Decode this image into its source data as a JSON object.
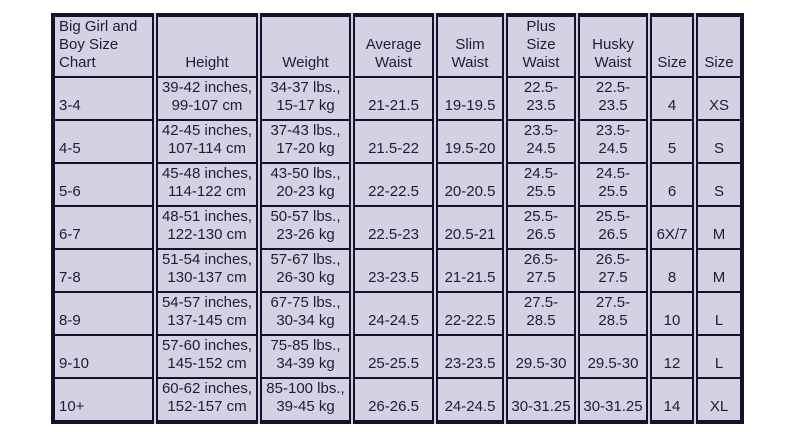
{
  "colors": {
    "cell_background": "#d4d1e3",
    "grid_line": "#16112d",
    "text": "#201a38",
    "page_background": "#ffffff"
  },
  "size_chart": {
    "columns": [
      {
        "id": "size-range",
        "label": "Big Girl and\nBoy Size\nChart",
        "width": 102
      },
      {
        "id": "height",
        "label": "Height",
        "width": 104
      },
      {
        "id": "weight",
        "label": "Weight",
        "width": 93
      },
      {
        "id": "average-waist",
        "label": "Average\nWaist",
        "width": 83
      },
      {
        "id": "slim-waist",
        "label": "Slim\nWaist",
        "width": 70
      },
      {
        "id": "plus-size-waist",
        "label": "Plus Size\nWaist",
        "width": 72
      },
      {
        "id": "husky-waist",
        "label": "Husky\nWaist",
        "width": 72
      },
      {
        "id": "size-number",
        "label": "Size",
        "width": 46
      },
      {
        "id": "size-letter",
        "label": "Size",
        "width": 47
      }
    ],
    "rows": [
      {
        "cells": [
          "3-4",
          "39-42 inches,\n99-107 cm",
          "34-37 lbs.,\n15-17 kg",
          "21-21.5",
          "19-19.5",
          "22.5-\n23.5",
          "22.5-\n23.5",
          "4",
          "XS"
        ]
      },
      {
        "cells": [
          "4-5",
          "42-45 inches,\n107-114 cm",
          "37-43 lbs.,\n17-20 kg",
          "21.5-22",
          "19.5-20",
          "23.5-\n24.5",
          "23.5-\n24.5",
          "5",
          "S"
        ]
      },
      {
        "cells": [
          "5-6",
          "45-48 inches,\n114-122 cm",
          "43-50 lbs.,\n20-23 kg",
          "22-22.5",
          "20-20.5",
          "24.5-\n25.5",
          "24.5-\n25.5",
          "6",
          "S"
        ]
      },
      {
        "cells": [
          "6-7",
          "48-51 inches,\n122-130 cm",
          "50-57 lbs.,\n23-26 kg",
          "22.5-23",
          "20.5-21",
          "25.5-\n26.5",
          "25.5-\n26.5",
          "6X/7",
          "M"
        ]
      },
      {
        "cells": [
          "7-8",
          "51-54 inches,\n130-137 cm",
          "57-67 lbs.,\n26-30 kg",
          "23-23.5",
          "21-21.5",
          "26.5-\n27.5",
          "26.5-\n27.5",
          "8",
          "M"
        ]
      },
      {
        "cells": [
          "8-9",
          "54-57 inches,\n137-145 cm",
          "67-75 lbs.,\n30-34 kg",
          "24-24.5",
          "22-22.5",
          "27.5-\n28.5",
          "27.5-\n28.5",
          "10",
          "L"
        ]
      },
      {
        "cells": [
          "9-10",
          "57-60 inches,\n145-152 cm",
          "75-85 lbs.,\n34-39 kg",
          "25-25.5",
          "23-23.5",
          "29.5-30",
          "29.5-30",
          "12",
          "L"
        ]
      },
      {
        "cells": [
          "10+",
          "60-62 inches,\n152-157 cm",
          "85-100 lbs.,\n39-45 kg",
          "26-26.5",
          "24-24.5",
          "30-31.25",
          "30-31.25",
          "14",
          "XL"
        ]
      }
    ]
  }
}
